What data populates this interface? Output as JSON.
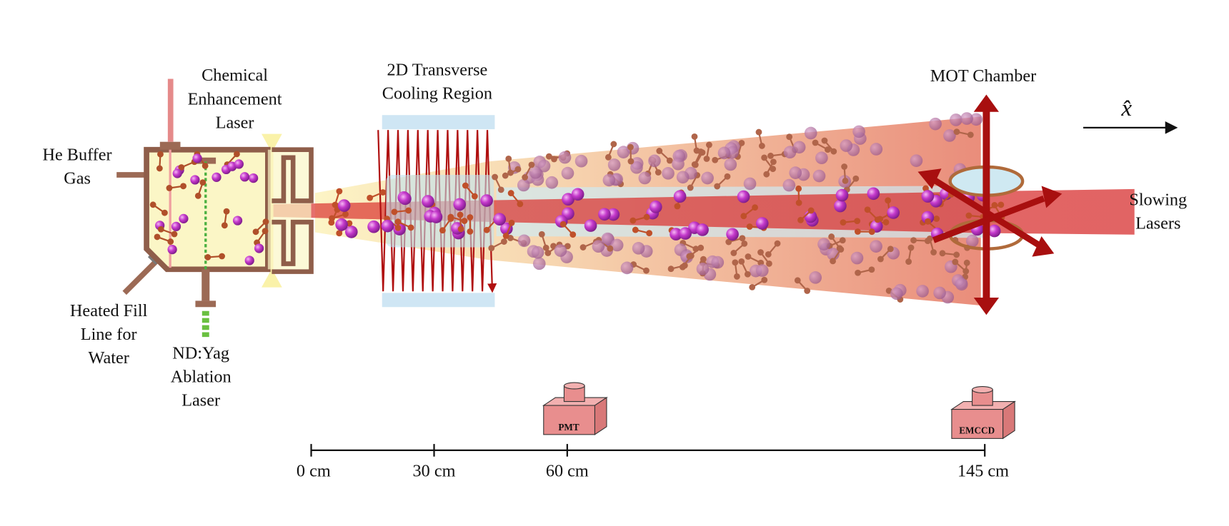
{
  "labels": {
    "he_buffer_gas": [
      "He Buffer",
      "Gas"
    ],
    "chemical_laser": [
      "Chemical",
      "Enhancement",
      "Laser"
    ],
    "cooling_region": [
      "2D Transverse",
      "Cooling Region"
    ],
    "mot_chamber": [
      "MOT Chamber"
    ],
    "axis": [
      "x̂"
    ],
    "slowing_lasers": [
      "Slowing",
      "Lasers"
    ],
    "fill_line": [
      "Heated Fill",
      "Line for",
      "Water"
    ],
    "ablation_laser": [
      "ND:Yag",
      "Ablation",
      "Laser"
    ],
    "pmt": [
      "PMT"
    ],
    "emccd": [
      "EMCCD"
    ]
  },
  "scale": [
    "0 cm",
    "30 cm",
    "60 cm",
    "145 cm"
  ]
}
